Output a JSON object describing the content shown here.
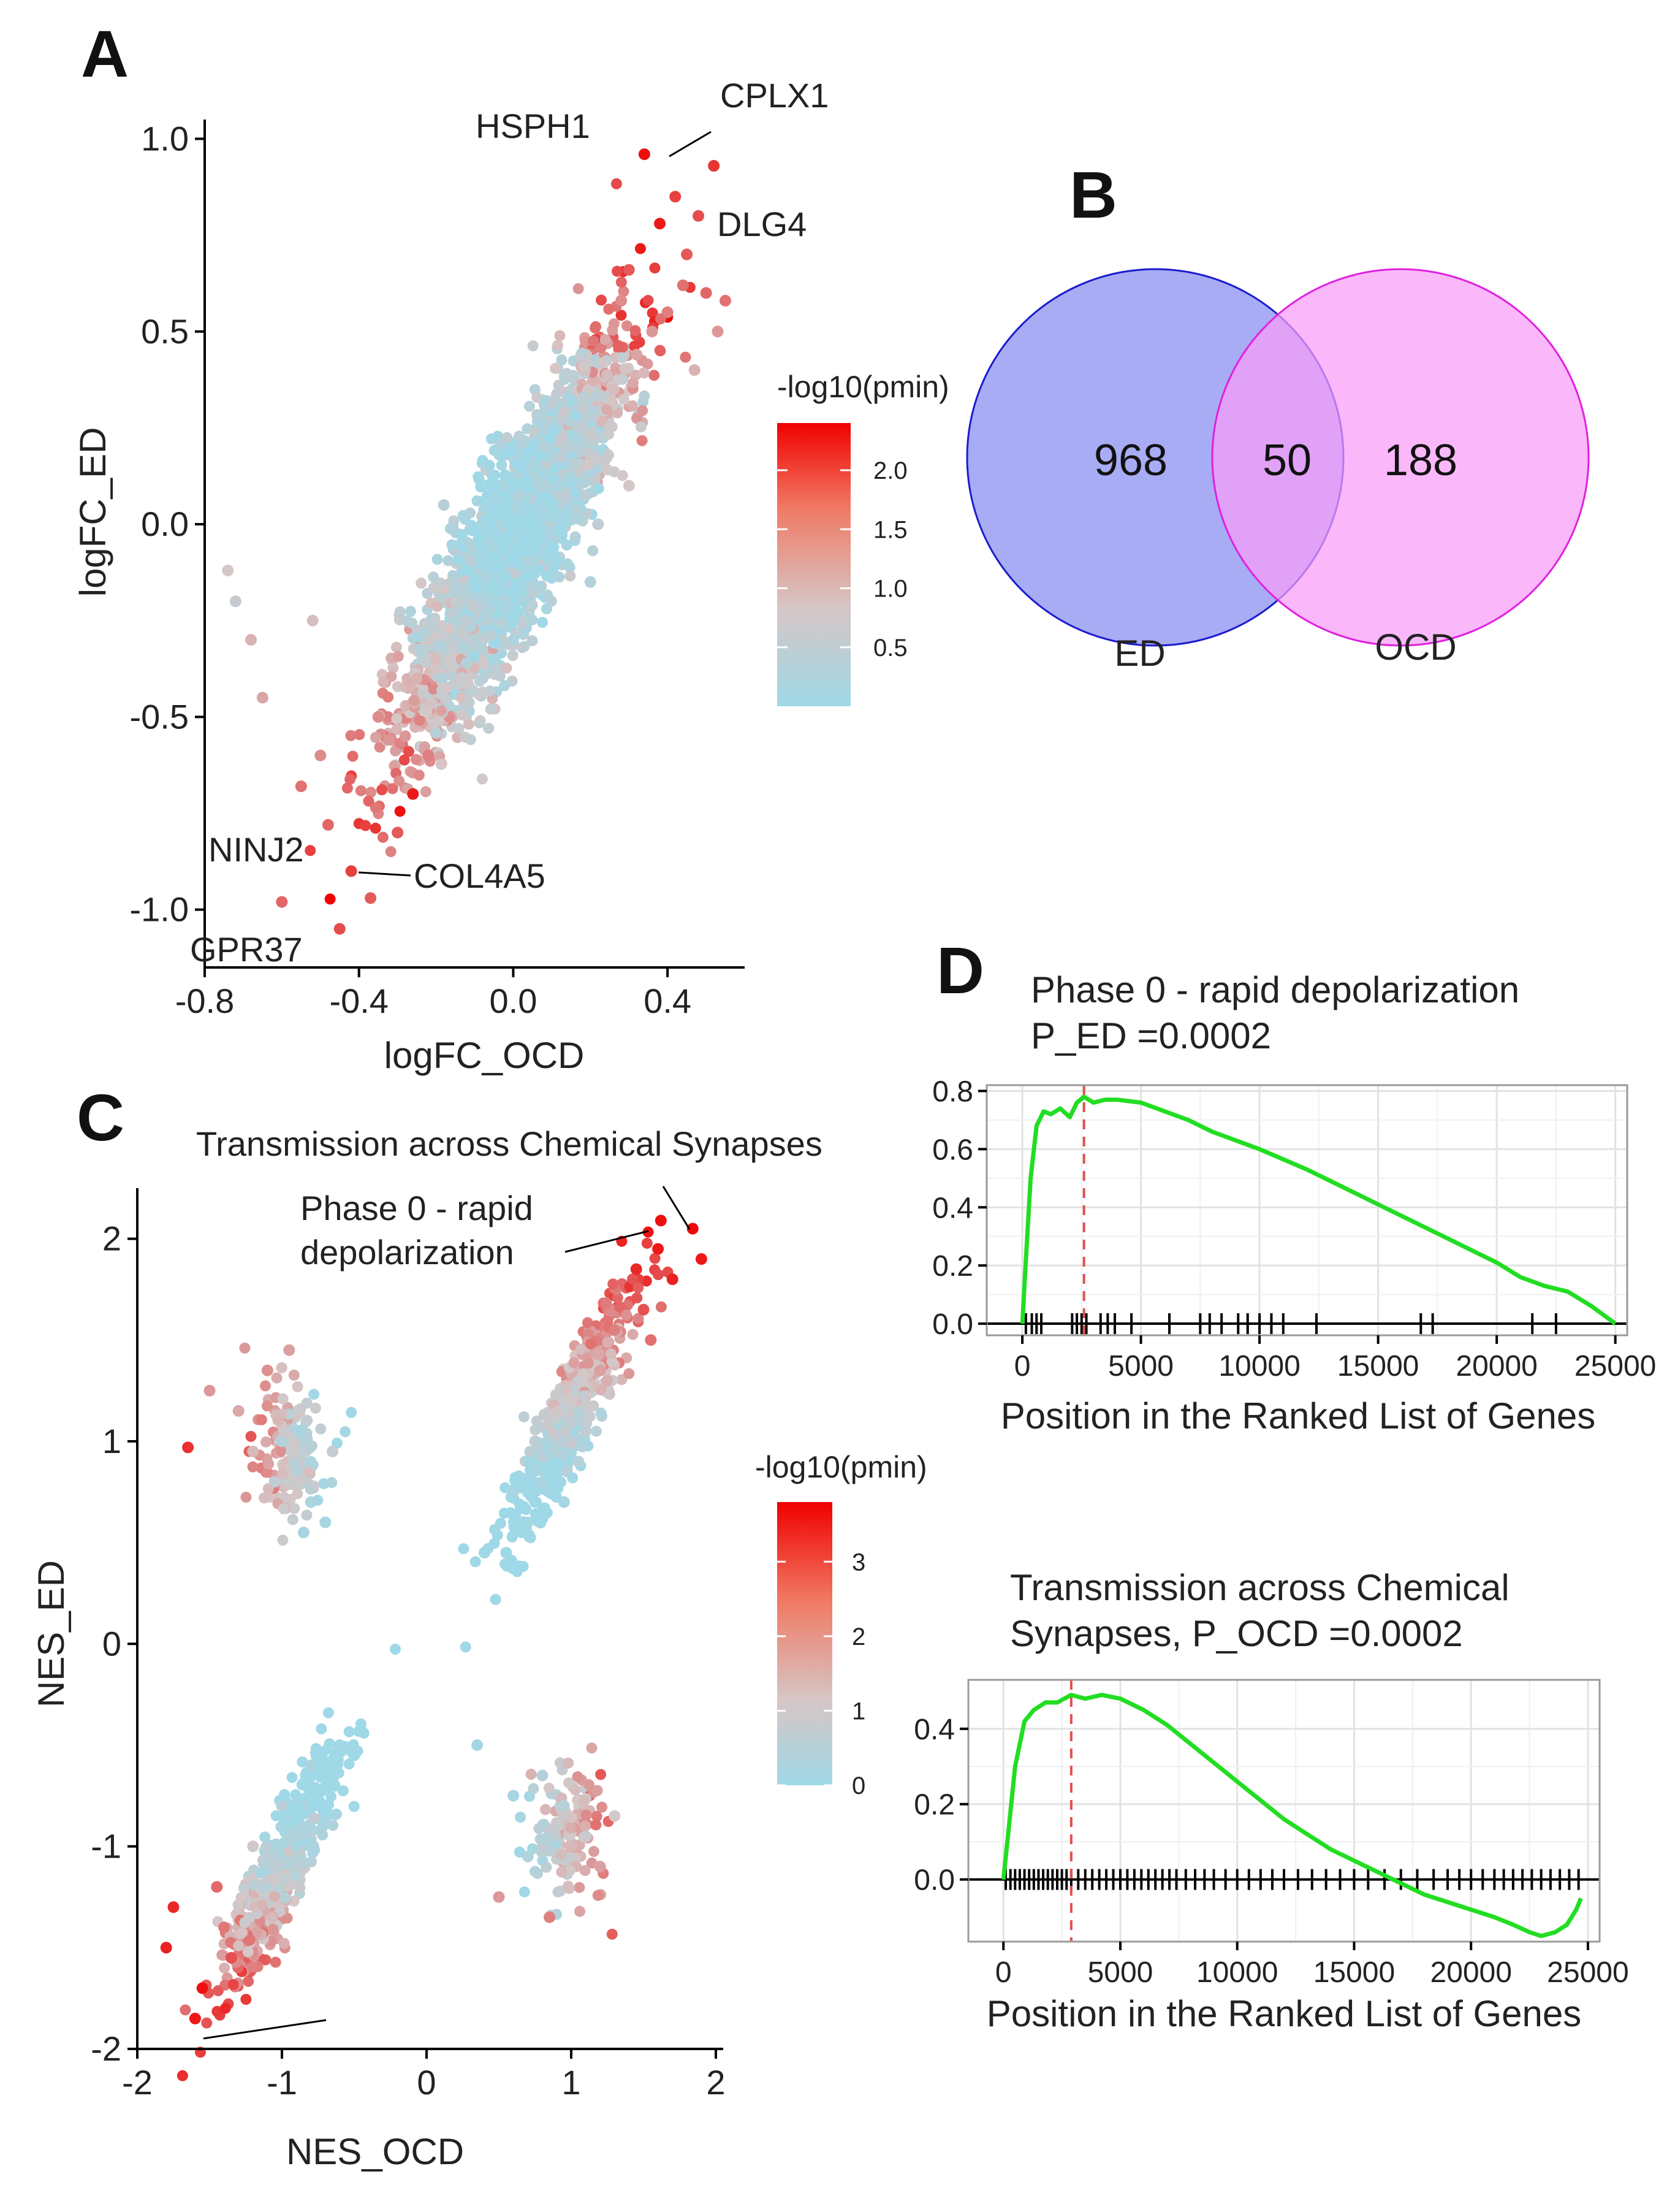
{
  "panels": {
    "a": "A",
    "b": "B",
    "c": "C",
    "d": "D"
  },
  "chart_data": [
    {
      "id": "A",
      "type": "scatter",
      "xlabel": "logFC_OCD",
      "ylabel": "logFC_ED",
      "xlim": [
        -0.8,
        0.6
      ],
      "ylim": [
        -1.15,
        1.05
      ],
      "xticks": [
        -0.8,
        -0.4,
        0.0,
        0.4
      ],
      "xtick_labels": [
        "-0.8",
        "-0.4",
        "0.0",
        "0.4"
      ],
      "yticks": [
        1.0,
        0.5,
        0.0,
        -0.5,
        -1.0
      ],
      "ytick_labels": [
        "1.0",
        "0.5",
        "0.0",
        "-0.5",
        "-1.0"
      ],
      "legend": {
        "title": "-log10(pmin)",
        "ticks": [
          2.0,
          1.5,
          1.0,
          0.5
        ],
        "tick_labels": [
          "2.0",
          "1.5",
          "1.0",
          "0.5"
        ],
        "range": [
          0,
          2.4
        ],
        "low_color": "#9fd8e6",
        "mid_color": "#d6c6c6",
        "high_color": "#f00000"
      },
      "labels": [
        {
          "text": "HSPH1",
          "x": 0.34,
          "y": 0.96
        },
        {
          "text": "CPLX1",
          "x": 0.52,
          "y": 0.93
        },
        {
          "text": "DLG4",
          "x": 0.48,
          "y": 0.8
        },
        {
          "text": "NINJ2",
          "x": -0.6,
          "y": -0.98
        },
        {
          "text": "COL4A5",
          "x": -0.37,
          "y": -0.97
        },
        {
          "text": "GPR37",
          "x": -0.75,
          "y": -1.12
        }
      ],
      "series": [
        {
          "name": "genes",
          "x": [
            0.34,
            0.52,
            0.48,
            0.42,
            0.45,
            0.5,
            0.55,
            0.38,
            0.3,
            0.4,
            0.44,
            0.36,
            0.28,
            0.32,
            0.47,
            0.53,
            0.26,
            -0.6,
            -0.37,
            -0.45,
            -0.42,
            -0.48,
            -0.72,
            -0.55,
            -0.3,
            -0.26,
            -0.22,
            -0.35,
            -0.25,
            -0.28,
            -0.65,
            -0.68,
            -0.52,
            -0.5,
            -0.74,
            0.12,
            0.18,
            -0.05,
            0.02,
            0.08,
            -0.12,
            0.05,
            0.15,
            -0.08,
            0.25,
            0.2,
            -0.15,
            0.1,
            0.0,
            -0.18,
            0.3,
            -0.2,
            0.22
          ],
          "y": [
            0.96,
            0.93,
            0.8,
            0.85,
            0.7,
            0.6,
            0.58,
            0.78,
            0.66,
            0.55,
            0.62,
            0.5,
            0.58,
            0.44,
            0.4,
            0.5,
            0.35,
            -0.98,
            -0.97,
            -1.05,
            -0.9,
            -0.78,
            -0.2,
            -0.68,
            -0.8,
            -0.7,
            -0.6,
            -0.5,
            -0.4,
            -0.55,
            -0.45,
            -0.3,
            -0.25,
            -0.6,
            -0.12,
            0.1,
            0.3,
            -0.05,
            0.05,
            0.2,
            -0.25,
            -0.1,
            0.15,
            0.0,
            0.25,
            -0.15,
            -0.2,
            0.02,
            -0.3,
            0.05,
            0.1,
            -0.35,
            0.0
          ],
          "color_value": [
            2.3,
            2.0,
            1.8,
            1.9,
            1.7,
            1.6,
            1.5,
            2.2,
            1.7,
            1.4,
            1.5,
            1.2,
            1.3,
            1.1,
            1.0,
            1.2,
            0.9,
            1.6,
            1.7,
            1.8,
            1.9,
            1.6,
            0.6,
            1.5,
            1.7,
            2.2,
            1.4,
            1.3,
            1.0,
            1.2,
            1.1,
            1.0,
            0.9,
            1.3,
            0.8,
            0.2,
            0.6,
            0.1,
            0.1,
            0.3,
            0.5,
            0.2,
            0.4,
            0.1,
            0.7,
            0.3,
            0.6,
            0.1,
            0.2,
            0.4,
            0.8,
            0.9,
            0.5
          ]
        }
      ]
    },
    {
      "id": "B",
      "type": "venn",
      "sets": [
        {
          "name": "ED",
          "only": 968,
          "color": "#8a90f0"
        },
        {
          "name": "OCD",
          "only": 188,
          "color": "#f89cf8"
        }
      ],
      "intersection": 50,
      "counts_text": [
        "968",
        "50",
        "188"
      ]
    },
    {
      "id": "C",
      "type": "scatter",
      "xlabel": "NES_OCD",
      "ylabel": "NES_ED",
      "xlim": [
        -2.0,
        2.0
      ],
      "ylim": [
        -2.0,
        2.25
      ],
      "xticks": [
        -2,
        -1,
        0,
        1,
        2
      ],
      "xtick_labels": [
        "-2",
        "-1",
        "0",
        "1",
        "2"
      ],
      "yticks": [
        2,
        1,
        0,
        -1,
        -2
      ],
      "ytick_labels": [
        "2",
        "1",
        "0",
        "-1",
        "-2"
      ],
      "legend": {
        "title": "-log10(pmin)",
        "ticks": [
          3,
          2,
          1,
          0
        ],
        "tick_labels": [
          "3",
          "2",
          "1",
          "0"
        ],
        "range": [
          0,
          3.8
        ],
        "low_color": "#9fd8e6",
        "mid_color": "#d6c6c6",
        "high_color": "#f00000"
      },
      "labels": [
        {
          "text": "Transmission across Chemical Synapses",
          "x": 1.84,
          "y": 2.05
        },
        {
          "text": "Phase 0 - rapid",
          "x": 1.62,
          "y": 1.98
        },
        {
          "text": "depolarization",
          "x": 1.62,
          "y": 1.98
        }
      ],
      "series": [
        {
          "name": "pathways",
          "x": [
            1.84,
            1.62,
            1.6,
            1.45,
            1.7,
            1.9,
            1.5,
            1.3,
            1.2,
            1.55,
            1.0,
            1.1,
            0.9,
            0.8,
            1.25,
            0.95,
            0.55,
            0.4,
            0.7,
            0.6,
            1.05,
            0.85,
            0.75,
            -1.0,
            -1.2,
            -0.9,
            -0.8,
            -0.7,
            -1.1,
            -1.5,
            -1.65,
            -1.3,
            -0.95,
            -1.05,
            -0.85,
            -0.65,
            -1.4,
            -1.55,
            -1.35,
            -1.6,
            -1.75,
            -1.8,
            -1.45,
            -1.2,
            -1.0,
            -0.8,
            -0.6,
            -0.5,
            0.35,
            0.6,
            0.8,
            0.9,
            1.0,
            1.2,
            1.3,
            0.7,
            0.5,
            0.85,
            0.95,
            1.1
          ],
          "y": [
            2.05,
            2.09,
            1.95,
            1.85,
            1.8,
            1.9,
            1.65,
            1.55,
            1.35,
            1.5,
            1.2,
            1.05,
            0.95,
            0.8,
            1.3,
            0.7,
            0.45,
            0.45,
            0.6,
            0.75,
            0.9,
            1.1,
            1.0,
            1.0,
            0.95,
            0.85,
            0.7,
            0.6,
            1.35,
            1.25,
            0.97,
            1.15,
            1.45,
            0.8,
            0.55,
            0.95,
            -1.4,
            -1.7,
            -1.55,
            -1.85,
            -1.3,
            -1.5,
            -1.2,
            -1.0,
            -0.8,
            -0.6,
            -0.5,
            -0.55,
            -0.5,
            -0.75,
            -0.65,
            -0.9,
            -1.0,
            -1.1,
            -0.85,
            -1.05,
            -1.25,
            -1.35,
            -0.8,
            -0.95
          ],
          "color_value": [
            3.7,
            3.6,
            3.5,
            3.3,
            3.4,
            3.5,
            2.8,
            2.2,
            1.8,
            2.4,
            1.2,
            0.8,
            0.5,
            0.3,
            1.6,
            0.2,
            0.0,
            0.0,
            0.1,
            0.2,
            0.6,
            1.0,
            0.7,
            0.5,
            1.5,
            0.6,
            0.3,
            0.2,
            2.0,
            1.9,
            3.2,
            1.7,
            1.8,
            0.8,
            0.2,
            0.9,
            2.3,
            3.6,
            2.8,
            3.5,
            3.3,
            3.4,
            2.5,
            1.2,
            0.6,
            0.3,
            0.1,
            0.0,
            0.1,
            0.2,
            0.5,
            1.0,
            1.5,
            1.8,
            1.2,
            0.4,
            1.9,
            2.2,
            0.6,
            1.0
          ]
        }
      ]
    },
    {
      "id": "D1",
      "type": "line",
      "title": "Phase 0 - rapid depolarization",
      "subtitle": "P_ED =0.0002",
      "xlabel": "Position in the Ranked List of Genes",
      "ylabel": "",
      "xlim": [
        -1500,
        25500
      ],
      "ylim": [
        -0.04,
        0.82
      ],
      "xticks": [
        0,
        5000,
        10000,
        15000,
        20000,
        25000
      ],
      "xtick_labels": [
        "0",
        "5000",
        "10000",
        "15000",
        "20000",
        "25000"
      ],
      "yticks": [
        0.8,
        0.6,
        0.4,
        0.2,
        0.0
      ],
      "ytick_labels": [
        "0.8",
        "0.6",
        "0.4",
        "0.2",
        "0.0"
      ],
      "leading_edge_x": 2600,
      "x": [
        0,
        150,
        350,
        600,
        900,
        1200,
        1600,
        2000,
        2300,
        2600,
        3000,
        3500,
        4000,
        5000,
        6000,
        7000,
        8000,
        10000,
        12000,
        14000,
        16000,
        18000,
        20000,
        21000,
        22000,
        23000,
        24000,
        25000
      ],
      "y": [
        0.0,
        0.22,
        0.5,
        0.68,
        0.73,
        0.72,
        0.74,
        0.71,
        0.76,
        0.78,
        0.76,
        0.77,
        0.77,
        0.76,
        0.73,
        0.7,
        0.66,
        0.6,
        0.53,
        0.45,
        0.37,
        0.29,
        0.21,
        0.16,
        0.13,
        0.11,
        0.06,
        0.0
      ],
      "hits": [
        150,
        400,
        600,
        800,
        2100,
        2300,
        2500,
        2700,
        3300,
        3600,
        3900,
        4600,
        6200,
        7500,
        7900,
        8400,
        9100,
        9500,
        10000,
        10500,
        11000,
        12400,
        16800,
        17300,
        21500,
        22500
      ]
    },
    {
      "id": "D2",
      "type": "line",
      "title": "Transmission  across Chemical",
      "subtitle": "Synapses, P_OCD =0.0002",
      "xlabel": "Position in the Ranked List of Genes",
      "ylabel": "",
      "xlim": [
        -1500,
        25500
      ],
      "ylim": [
        -0.165,
        0.53
      ],
      "xticks": [
        0,
        5000,
        10000,
        15000,
        20000,
        25000
      ],
      "xtick_labels": [
        "0",
        "5000",
        "10000",
        "15000",
        "20000",
        "25000"
      ],
      "yticks": [
        0.4,
        0.2,
        0.0
      ],
      "ytick_labels": [
        "0.4",
        "0.2",
        "0.0"
      ],
      "leading_edge_x": 2900,
      "x": [
        0,
        200,
        500,
        900,
        1300,
        1800,
        2300,
        2900,
        3500,
        4200,
        5000,
        6000,
        7000,
        8000,
        9000,
        10000,
        11000,
        12000,
        13000,
        14000,
        15000,
        16000,
        17000,
        18000,
        19000,
        20000,
        21000,
        21800,
        22500,
        23000,
        23600,
        24100,
        24500,
        24700
      ],
      "y": [
        0.0,
        0.12,
        0.3,
        0.42,
        0.45,
        0.47,
        0.47,
        0.49,
        0.48,
        0.49,
        0.48,
        0.45,
        0.41,
        0.36,
        0.31,
        0.26,
        0.21,
        0.16,
        0.12,
        0.08,
        0.05,
        0.02,
        -0.01,
        -0.04,
        -0.06,
        -0.08,
        -0.1,
        -0.12,
        -0.14,
        -0.15,
        -0.14,
        -0.12,
        -0.08,
        -0.05
      ],
      "hits": [
        100,
        300,
        500,
        700,
        900,
        1100,
        1300,
        1500,
        1700,
        1900,
        2100,
        2300,
        2500,
        2700,
        2900,
        3200,
        3500,
        3800,
        4100,
        4400,
        4700,
        5000,
        5300,
        5600,
        5900,
        6200,
        6500,
        6800,
        7100,
        7400,
        7800,
        8200,
        8600,
        9000,
        9500,
        10000,
        10500,
        11000,
        11500,
        12000,
        12600,
        13200,
        13800,
        14400,
        15000,
        15600,
        16300,
        17000,
        17700,
        18400,
        19000,
        19500,
        20000,
        20500,
        21000,
        21400,
        21800,
        22200,
        22600,
        23000,
        23400,
        23800,
        24200,
        24600
      ]
    }
  ]
}
